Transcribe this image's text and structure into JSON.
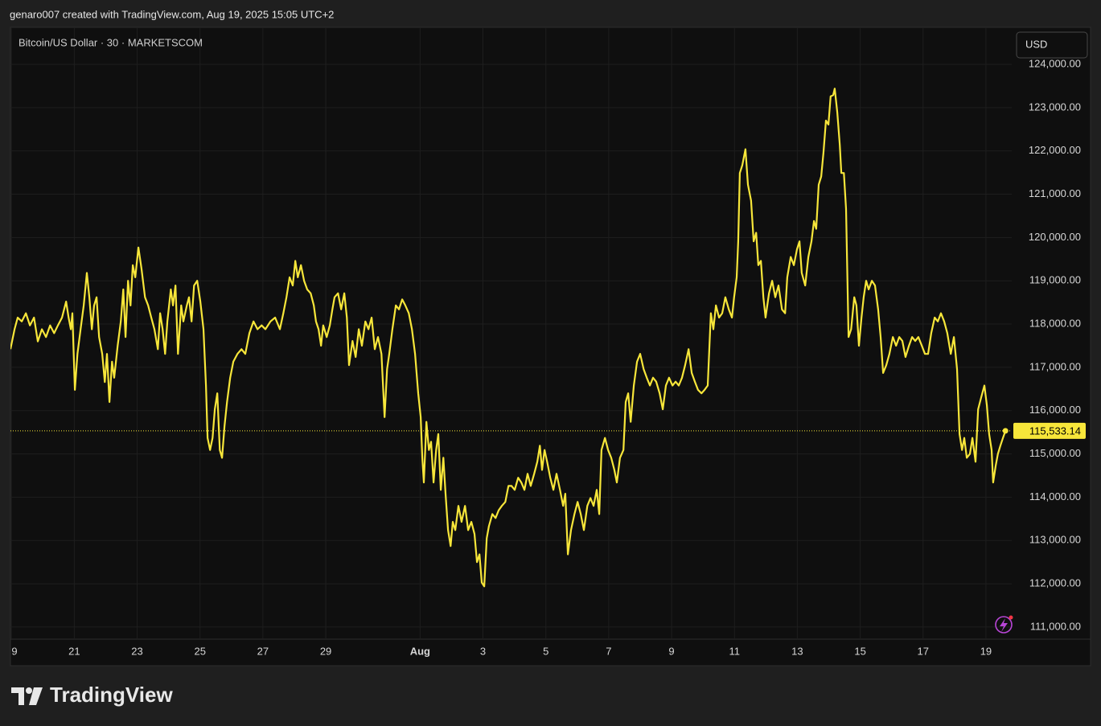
{
  "header": "genaro007 created with TradingView.com, Aug 19, 2025 15:05 UTC+2",
  "currency": "USD",
  "brand": "TradingView",
  "chart_data": {
    "type": "line",
    "grid": true,
    "xlim": [
      18.97,
      50.82
    ],
    "ylim": [
      110720,
      124855
    ],
    "xticks": [
      {
        "value": 19,
        "label": "9"
      },
      21,
      23,
      25,
      27,
      29,
      {
        "value": 32,
        "label": "Aug"
      },
      {
        "value": 34,
        "label": "3"
      },
      {
        "value": 36,
        "label": "5"
      },
      {
        "value": 38,
        "label": "7"
      },
      {
        "value": 40,
        "label": "9"
      },
      {
        "value": 42,
        "label": "11"
      },
      {
        "value": 44,
        "label": "13"
      },
      {
        "value": 46,
        "label": "15"
      },
      {
        "value": 48,
        "label": "17"
      },
      {
        "value": 50,
        "label": "19"
      }
    ],
    "yticks": [
      {
        "value": 111000,
        "label": "111,000.00"
      },
      {
        "value": 112000,
        "label": "112,000.00"
      },
      {
        "value": 113000,
        "label": "113,000.00"
      },
      {
        "value": 114000,
        "label": "114,000.00"
      },
      {
        "value": 115000,
        "label": "115,000.00"
      },
      {
        "value": 116000,
        "label": "116,000.00"
      },
      {
        "value": 117000,
        "label": "117,000.00"
      },
      {
        "value": 118000,
        "label": "118,000.00"
      },
      {
        "value": 119000,
        "label": "119,000.00"
      },
      {
        "value": 120000,
        "label": "120,000.00"
      },
      {
        "value": 121000,
        "label": "121,000.00"
      },
      {
        "value": 122000,
        "label": "122,000.00"
      },
      {
        "value": 123000,
        "label": "123,000.00"
      },
      {
        "value": 124000,
        "label": "124,000.00"
      }
    ],
    "price_line": {
      "value": 115533.14,
      "label": "115,533.14"
    },
    "x": [
      18.97,
      19.1,
      19.2,
      19.33,
      19.46,
      19.59,
      19.72,
      19.84,
      19.97,
      20.1,
      20.23,
      20.36,
      20.48,
      20.61,
      20.74,
      20.82,
      20.89,
      20.94,
      21.02,
      21.1,
      21.2,
      21.3,
      21.4,
      21.48,
      21.56,
      21.63,
      21.71,
      21.79,
      21.89,
      21.97,
      22.04,
      22.12,
      22.2,
      22.27,
      22.38,
      22.48,
      22.56,
      22.63,
      22.71,
      22.79,
      22.86,
      22.94,
      23.04,
      23.14,
      23.25,
      23.35,
      23.45,
      23.55,
      23.66,
      23.73,
      23.81,
      23.89,
      23.96,
      24.07,
      24.14,
      24.22,
      24.3,
      24.4,
      24.47,
      24.58,
      24.65,
      24.73,
      24.81,
      24.91,
      25.01,
      25.11,
      25.19,
      25.24,
      25.32,
      25.4,
      25.47,
      25.55,
      25.63,
      25.7,
      25.78,
      25.86,
      25.96,
      26.06,
      26.19,
      26.32,
      26.44,
      26.57,
      26.7,
      26.83,
      26.96,
      27.08,
      27.24,
      27.39,
      27.54,
      27.65,
      27.75,
      27.85,
      27.95,
      28.03,
      28.11,
      28.21,
      28.31,
      28.41,
      28.52,
      28.62,
      28.69,
      28.77,
      28.85,
      28.92,
      29.03,
      29.13,
      29.21,
      29.28,
      29.39,
      29.49,
      29.59,
      29.67,
      29.74,
      29.85,
      29.95,
      30.05,
      30.15,
      30.26,
      30.36,
      30.46,
      30.56,
      30.66,
      30.77,
      30.87,
      30.95,
      31.02,
      31.12,
      31.23,
      31.33,
      31.43,
      31.53,
      31.64,
      31.74,
      31.84,
      31.94,
      32.02,
      32.07,
      32.12,
      32.2,
      32.28,
      32.35,
      32.43,
      32.51,
      32.58,
      32.66,
      32.74,
      32.81,
      32.89,
      32.97,
      33.04,
      33.12,
      33.22,
      33.32,
      33.43,
      33.53,
      33.63,
      33.73,
      33.81,
      33.89,
      33.96,
      34.04,
      34.12,
      34.19,
      34.3,
      34.4,
      34.5,
      34.6,
      34.71,
      34.81,
      34.91,
      35.01,
      35.12,
      35.22,
      35.32,
      35.42,
      35.52,
      35.63,
      35.73,
      35.81,
      35.88,
      35.96,
      36.04,
      36.14,
      36.24,
      36.34,
      36.45,
      36.55,
      36.62,
      36.7,
      36.8,
      36.91,
      37.01,
      37.11,
      37.21,
      37.32,
      37.42,
      37.52,
      37.62,
      37.7,
      37.77,
      37.88,
      37.98,
      38.08,
      38.18,
      38.26,
      38.36,
      38.47,
      38.54,
      38.62,
      38.7,
      38.8,
      38.9,
      39.0,
      39.11,
      39.21,
      39.31,
      39.41,
      39.51,
      39.62,
      39.72,
      39.82,
      39.92,
      40.03,
      40.13,
      40.23,
      40.33,
      40.43,
      40.54,
      40.64,
      40.74,
      40.84,
      40.95,
      41.05,
      41.15,
      41.25,
      41.33,
      41.41,
      41.51,
      41.61,
      41.71,
      41.82,
      41.92,
      41.99,
      42.07,
      42.12,
      42.17,
      42.25,
      42.35,
      42.43,
      42.53,
      42.61,
      42.69,
      42.76,
      42.84,
      42.92,
      42.99,
      43.1,
      43.2,
      43.3,
      43.4,
      43.51,
      43.61,
      43.68,
      43.79,
      43.89,
      43.99,
      44.07,
      44.14,
      44.25,
      44.35,
      44.45,
      44.53,
      44.6,
      44.68,
      44.76,
      44.83,
      44.91,
      44.99,
      45.06,
      45.14,
      45.19,
      45.27,
      45.35,
      45.4,
      45.48,
      45.55,
      45.63,
      45.71,
      45.81,
      45.88,
      45.96,
      46.04,
      46.11,
      46.19,
      46.27,
      46.37,
      46.47,
      46.57,
      46.65,
      46.73,
      46.83,
      46.93,
      47.04,
      47.14,
      47.24,
      47.34,
      47.44,
      47.55,
      47.65,
      47.75,
      47.85,
      47.96,
      48.06,
      48.16,
      48.26,
      48.37,
      48.47,
      48.57,
      48.67,
      48.77,
      48.88,
      48.98,
      49.08,
      49.16,
      49.24,
      49.31,
      49.39,
      49.49,
      49.57,
      49.67,
      49.75,
      49.85,
      49.95,
      50.03,
      50.1,
      50.18,
      50.23,
      50.31,
      50.38,
      50.46,
      50.54,
      50.62
    ],
    "series": [
      {
        "name": "Bitcoin/US Dollar · 30 · MARKETSCOM",
        "color": "#f7e63a",
        "values": [
          117420,
          117880,
          118150,
          118060,
          118250,
          117970,
          118150,
          117600,
          117880,
          117700,
          117970,
          117790,
          117970,
          118150,
          118520,
          118150,
          117880,
          118250,
          116480,
          117310,
          117880,
          118430,
          119180,
          118620,
          117880,
          118430,
          118620,
          117700,
          117310,
          116660,
          117310,
          116200,
          117130,
          116760,
          117500,
          118060,
          118800,
          117700,
          119000,
          118430,
          119360,
          119080,
          119770,
          119270,
          118620,
          118430,
          118150,
          117880,
          117420,
          118250,
          117880,
          117310,
          118060,
          118800,
          118430,
          118890,
          117310,
          118430,
          118060,
          118430,
          118620,
          118060,
          118890,
          119000,
          118520,
          117880,
          116580,
          115370,
          115090,
          115370,
          116030,
          116400,
          115090,
          114910,
          115650,
          116200,
          116760,
          117130,
          117310,
          117420,
          117310,
          117790,
          118060,
          117880,
          117970,
          117880,
          118060,
          118150,
          117880,
          118250,
          118620,
          119080,
          118890,
          119460,
          119080,
          119360,
          119000,
          118800,
          118710,
          118430,
          118060,
          117880,
          117500,
          117970,
          117700,
          117970,
          118340,
          118620,
          118710,
          118340,
          118710,
          118150,
          117050,
          117610,
          117240,
          117880,
          117500,
          118060,
          117880,
          118150,
          117420,
          117700,
          117310,
          115850,
          116960,
          117310,
          117880,
          118430,
          118340,
          118570,
          118430,
          118250,
          117880,
          117310,
          116400,
          115850,
          114910,
          114340,
          115740,
          115090,
          115280,
          114340,
          115090,
          115460,
          114170,
          114910,
          114080,
          113240,
          112870,
          113430,
          113240,
          113800,
          113430,
          113800,
          113240,
          113430,
          113150,
          112500,
          112680,
          112030,
          111940,
          113050,
          113330,
          113610,
          113520,
          113700,
          113800,
          113890,
          114260,
          114260,
          114170,
          114450,
          114340,
          114170,
          114540,
          114260,
          114540,
          114820,
          115190,
          114630,
          115090,
          114820,
          114450,
          114170,
          114540,
          114170,
          113800,
          114080,
          112680,
          113240,
          113610,
          113890,
          113610,
          113240,
          113800,
          113980,
          113800,
          114170,
          113610,
          115090,
          115370,
          115090,
          114910,
          114630,
          114340,
          114910,
          115090,
          116200,
          116400,
          115740,
          116580,
          117130,
          117310,
          116960,
          116760,
          116580,
          116760,
          116670,
          116400,
          116030,
          116580,
          116760,
          116580,
          116670,
          116580,
          116760,
          117050,
          117420,
          116870,
          116670,
          116480,
          116400,
          116480,
          116580,
          118250,
          117880,
          118430,
          118150,
          118250,
          118620,
          118340,
          118150,
          118620,
          119080,
          119910,
          121490,
          121670,
          122040,
          121220,
          120850,
          119910,
          120110,
          119360,
          119460,
          118620,
          118150,
          118710,
          119000,
          118620,
          118890,
          118340,
          118250,
          119080,
          119550,
          119360,
          119730,
          119910,
          119180,
          118890,
          119550,
          119910,
          120380,
          120200,
          121220,
          121410,
          121960,
          122700,
          122610,
          123260,
          123290,
          123440,
          122890,
          122140,
          121490,
          121490,
          120660,
          117700,
          117880,
          118620,
          118430,
          117500,
          118150,
          118620,
          119000,
          118800,
          119000,
          118890,
          118340,
          117700,
          116870,
          117050,
          117310,
          117700,
          117500,
          117700,
          117610,
          117240,
          117500,
          117700,
          117610,
          117700,
          117500,
          117310,
          117310,
          117790,
          118150,
          118060,
          118250,
          118060,
          117790,
          117310,
          117700,
          116960,
          115460,
          115090,
          115370,
          114910,
          115000,
          115370,
          114820,
          116030,
          116310,
          116580,
          116120,
          115460,
          115090,
          114340,
          114730,
          115000,
          115190,
          115370,
          115533.14
        ]
      }
    ]
  }
}
